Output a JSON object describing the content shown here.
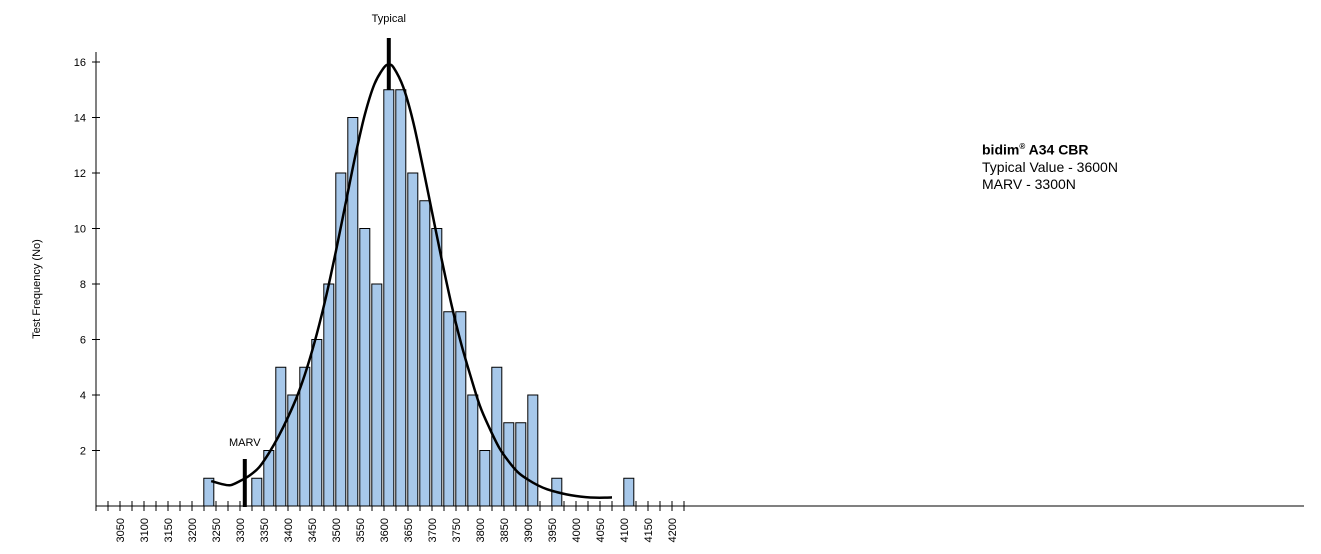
{
  "chart_data": {
    "type": "bar",
    "ylabel": "Test Frequency (No)",
    "xlabel": "",
    "x_ticks": [
      3050,
      3100,
      3150,
      3200,
      3250,
      3300,
      3350,
      3400,
      3450,
      3500,
      3550,
      3600,
      3650,
      3700,
      3750,
      3800,
      3850,
      3900,
      3950,
      4000,
      4050,
      4100,
      4150,
      4200
    ],
    "y_ticks": [
      2,
      4,
      6,
      8,
      10,
      12,
      14,
      16
    ],
    "ylim": [
      0,
      17
    ],
    "bars": [
      {
        "x": 3235,
        "y": 1
      },
      {
        "x": 3335,
        "y": 1
      },
      {
        "x": 3360,
        "y": 2
      },
      {
        "x": 3385,
        "y": 5
      },
      {
        "x": 3410,
        "y": 4
      },
      {
        "x": 3435,
        "y": 5
      },
      {
        "x": 3460,
        "y": 6
      },
      {
        "x": 3485,
        "y": 8
      },
      {
        "x": 3510,
        "y": 12
      },
      {
        "x": 3535,
        "y": 14
      },
      {
        "x": 3560,
        "y": 10
      },
      {
        "x": 3585,
        "y": 8
      },
      {
        "x": 3610,
        "y": 15
      },
      {
        "x": 3635,
        "y": 15
      },
      {
        "x": 3660,
        "y": 12
      },
      {
        "x": 3685,
        "y": 11
      },
      {
        "x": 3710,
        "y": 10
      },
      {
        "x": 3735,
        "y": 7
      },
      {
        "x": 3760,
        "y": 7
      },
      {
        "x": 3785,
        "y": 4
      },
      {
        "x": 3810,
        "y": 2
      },
      {
        "x": 3835,
        "y": 5
      },
      {
        "x": 3860,
        "y": 3
      },
      {
        "x": 3885,
        "y": 3
      },
      {
        "x": 3910,
        "y": 4
      },
      {
        "x": 3960,
        "y": 1
      },
      {
        "x": 4110,
        "y": 1
      }
    ],
    "curve": [
      [
        3240,
        0.9
      ],
      [
        3260,
        0.8
      ],
      [
        3280,
        0.75
      ],
      [
        3300,
        0.9
      ],
      [
        3320,
        1.1
      ],
      [
        3340,
        1.4
      ],
      [
        3360,
        1.9
      ],
      [
        3380,
        2.5
      ],
      [
        3400,
        3.2
      ],
      [
        3420,
        4.0
      ],
      [
        3440,
        5.0
      ],
      [
        3460,
        6.2
      ],
      [
        3480,
        7.6
      ],
      [
        3500,
        9.2
      ],
      [
        3520,
        10.9
      ],
      [
        3540,
        12.6
      ],
      [
        3560,
        14.1
      ],
      [
        3580,
        15.2
      ],
      [
        3600,
        15.8
      ],
      [
        3610,
        15.9
      ],
      [
        3620,
        15.8
      ],
      [
        3640,
        15.1
      ],
      [
        3660,
        13.9
      ],
      [
        3680,
        12.3
      ],
      [
        3700,
        10.6
      ],
      [
        3720,
        8.9
      ],
      [
        3740,
        7.3
      ],
      [
        3760,
        5.9
      ],
      [
        3780,
        4.7
      ],
      [
        3800,
        3.6
      ],
      [
        3820,
        2.8
      ],
      [
        3840,
        2.1
      ],
      [
        3860,
        1.6
      ],
      [
        3880,
        1.2
      ],
      [
        3900,
        0.95
      ],
      [
        3920,
        0.75
      ],
      [
        3940,
        0.6
      ],
      [
        3960,
        0.5
      ],
      [
        3980,
        0.42
      ],
      [
        4000,
        0.36
      ],
      [
        4020,
        0.32
      ],
      [
        4040,
        0.3
      ],
      [
        4060,
        0.3
      ],
      [
        4075,
        0.31
      ]
    ],
    "markers": [
      {
        "label": "MARV",
        "x": 3310
      },
      {
        "label": "Typical",
        "x": 3610
      }
    ],
    "legend": {
      "title": "bidim",
      "title_mark": "®",
      "title_suffix": "A34 CBR",
      "lines": [
        "Typical Value - 3600N",
        "MARV - 3300N"
      ]
    },
    "colors": {
      "bar_fill": "#a7c8ea",
      "bar_stroke": "#000000",
      "curve": "#000000",
      "axis": "#000000"
    }
  }
}
